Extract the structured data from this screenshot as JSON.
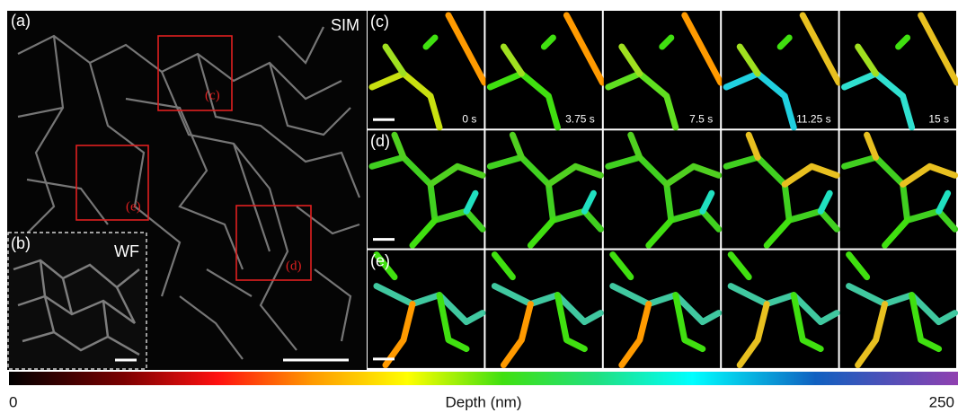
{
  "panel_a": {
    "label": "(a)",
    "modality": "SIM",
    "boxes": [
      "(c)",
      "(e)",
      "(d)"
    ]
  },
  "panel_b": {
    "label": "(b)",
    "modality": "WF"
  },
  "panels": [
    {
      "label": "(c)",
      "times": [
        "0 s",
        "3.75 s",
        "7.5 s",
        "11.25 s",
        "15 s"
      ]
    },
    {
      "label": "(d)"
    },
    {
      "label": "(e)"
    }
  ],
  "colorbar": {
    "min": 0,
    "title": "Depth (nm)",
    "max": 250
  }
}
